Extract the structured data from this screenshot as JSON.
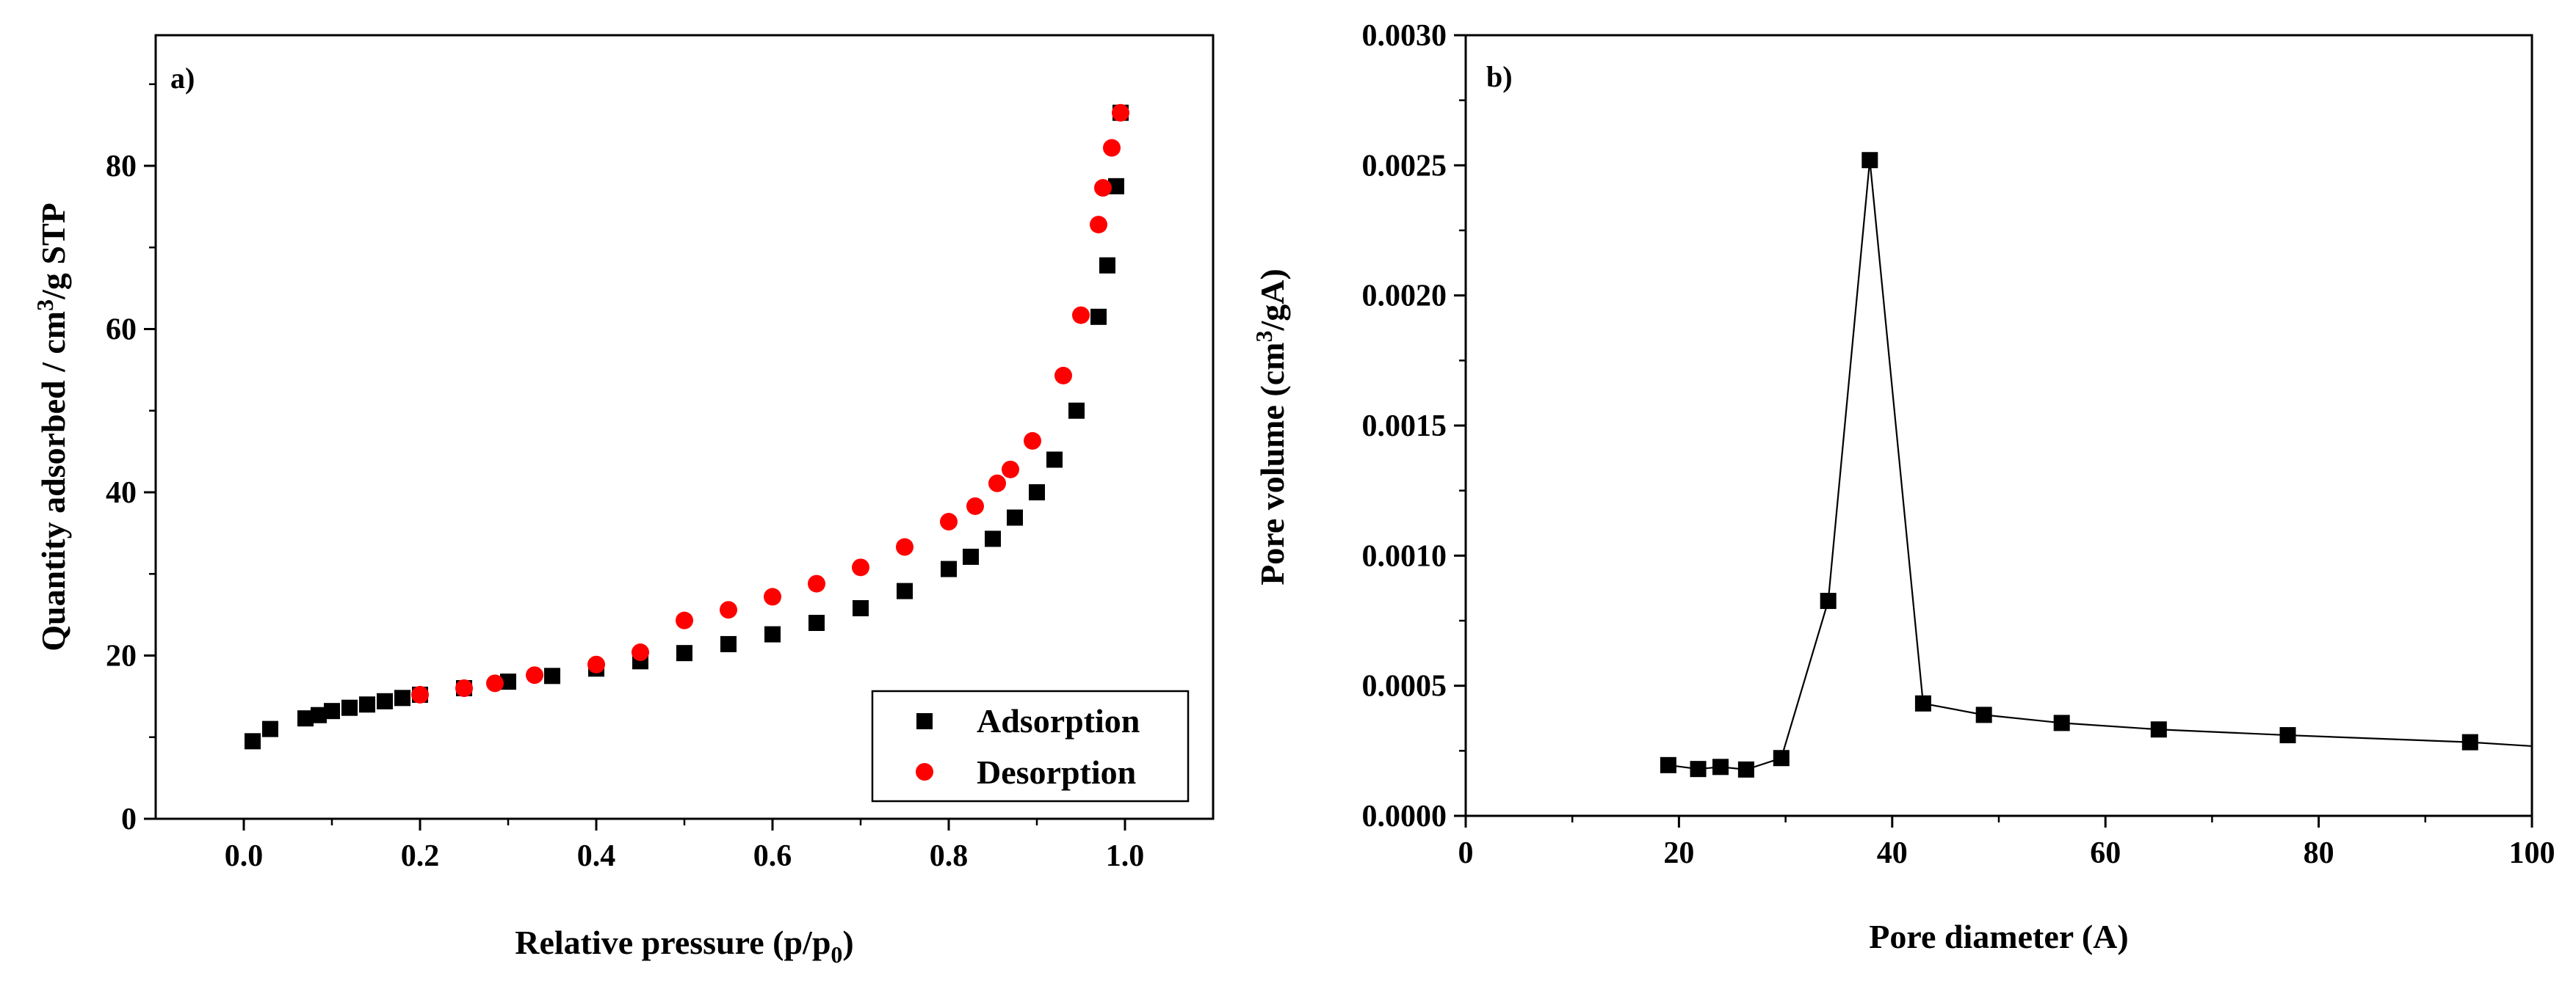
{
  "chart_data": [
    {
      "type": "scatter",
      "panel_label": "a)",
      "xlabel_main": "Relative pressure (p/p",
      "xlabel_sub": "0",
      "xlabel_end": ")",
      "ylabel_pre": "Quantity adsorbed / cm",
      "ylabel_sup": "3",
      "ylabel_post": "/g STP",
      "xlim": [
        -0.1,
        1.1
      ],
      "ylim": [
        0,
        96
      ],
      "xticks": [
        0.0,
        0.2,
        0.4,
        0.6,
        0.8,
        1.0
      ],
      "xtick_labels": [
        "0.0",
        "0.2",
        "0.4",
        "0.6",
        "0.8",
        "1.0"
      ],
      "yticks": [
        0,
        20,
        40,
        60,
        80
      ],
      "ytick_labels": [
        "0",
        "20",
        "40",
        "60",
        "80"
      ],
      "legend": {
        "position": "bottom-right",
        "entries": [
          "Adsorption",
          "Desorption"
        ]
      },
      "series": [
        {
          "name": "Adsorption",
          "marker": "square",
          "color": "#000000",
          "x": [
            0.01,
            0.03,
            0.07,
            0.085,
            0.1,
            0.12,
            0.14,
            0.16,
            0.18,
            0.2,
            0.25,
            0.3,
            0.35,
            0.4,
            0.45,
            0.5,
            0.55,
            0.6,
            0.65,
            0.7,
            0.75,
            0.8,
            0.825,
            0.85,
            0.875,
            0.9,
            0.92,
            0.945,
            0.97,
            0.98,
            0.99,
            0.995
          ],
          "y": [
            9.5,
            11.0,
            12.3,
            12.7,
            13.2,
            13.6,
            14.0,
            14.4,
            14.8,
            15.2,
            16.0,
            16.8,
            17.5,
            18.4,
            19.3,
            20.3,
            21.4,
            22.6,
            24.0,
            25.8,
            27.9,
            30.6,
            32.1,
            34.3,
            36.9,
            40.0,
            44.0,
            50.0,
            61.5,
            67.8,
            77.5,
            86.5
          ]
        },
        {
          "name": "Desorption",
          "marker": "circle",
          "color": "#ff0000",
          "x": [
            0.2,
            0.25,
            0.285,
            0.33,
            0.4,
            0.45,
            0.5,
            0.55,
            0.6,
            0.65,
            0.7,
            0.75,
            0.8,
            0.83,
            0.855,
            0.87,
            0.895,
            0.93,
            0.95,
            0.97,
            0.975,
            0.985,
            0.995
          ],
          "y": [
            15.2,
            16.0,
            16.6,
            17.6,
            18.9,
            20.4,
            24.3,
            25.6,
            27.2,
            28.8,
            30.8,
            33.3,
            36.4,
            38.3,
            41.1,
            42.8,
            46.3,
            54.3,
            61.7,
            72.8,
            77.3,
            82.2,
            86.5
          ]
        }
      ]
    },
    {
      "type": "line",
      "panel_label": "b)",
      "xlabel": "Pore diameter (A)",
      "ylabel_pre": "Pore volume (cm",
      "ylabel_sup": "3",
      "ylabel_post": "/gA)",
      "xlim": [
        0,
        100
      ],
      "ylim": [
        0,
        0.003
      ],
      "xticks": [
        0,
        20,
        40,
        60,
        80,
        100
      ],
      "xtick_labels": [
        "0",
        "20",
        "40",
        "60",
        "80",
        "100"
      ],
      "yticks": [
        0,
        0.0005,
        0.001,
        0.0015,
        0.002,
        0.0025,
        0.003
      ],
      "ytick_labels": [
        "0.0000",
        "0.0005",
        "0.0010",
        "0.0015",
        "0.0020",
        "0.0025",
        "0.0030"
      ],
      "series": [
        {
          "name": "Pore volume",
          "marker": "square",
          "color": "#000000",
          "x": [
            19.0,
            21.8,
            23.9,
            26.3,
            29.6,
            34.0,
            37.9,
            42.9,
            48.6,
            55.9,
            65.0,
            77.1,
            94.2
          ],
          "y": [
            0.000195,
            0.00018,
            0.000188,
            0.000178,
            0.000222,
            0.000826,
            0.00252,
            0.000432,
            0.000388,
            0.000357,
            0.000332,
            0.00031,
            0.000283
          ],
          "line_extension": {
            "x": [
              94.2,
              100
            ],
            "y": [
              0.000283,
              0.000268
            ]
          }
        }
      ]
    }
  ]
}
